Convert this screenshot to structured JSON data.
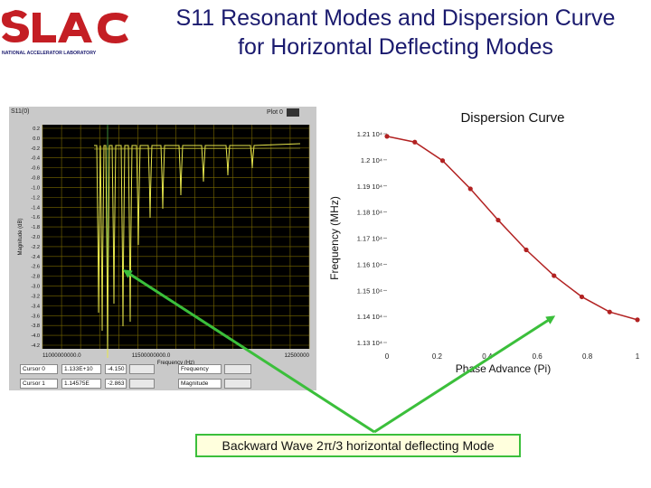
{
  "logo": {
    "name": "SLAC",
    "subtitle": "NATIONAL ACCELERATOR LABORATORY"
  },
  "title": {
    "line1": "S11 Resonant Modes and Dispersion Curve",
    "line2": "for Horizontal Deflecting Modes"
  },
  "s11_panel": {
    "header": "S11(0)",
    "plot_label": "Plot 0",
    "ylabel": "Magnitude (dB)",
    "xlabel": "Frequency (Hz)",
    "x_ticks": [
      "11000000000.0",
      "11500000000.0",
      "12500000"
    ],
    "y_ticks": [
      "0.2",
      "0.0",
      "-0.2",
      "-0.4",
      "-0.6",
      "-0.8",
      "-1.0",
      "-1.2",
      "-1.4",
      "-1.6",
      "-1.8",
      "-2.0",
      "-2.2",
      "-2.4",
      "-2.6",
      "-2.8",
      "-3.0",
      "-3.2",
      "-3.4",
      "-3.6",
      "-3.8",
      "-4.0",
      "-4.2"
    ],
    "cursors": [
      {
        "name": "Cursor 0",
        "freq": "1.133E+10",
        "mag": "-4.150"
      },
      {
        "name": "Cursor 1",
        "freq": "1.14575E",
        "mag": "-2.863"
      }
    ],
    "cursor_fields": [
      "Frequency",
      "Magnitude"
    ],
    "colors": {
      "plot_bg": "#000000",
      "grid": "#7a6a00",
      "trace": "#e6e64d",
      "panel": "#c9c9c9"
    }
  },
  "chart_data": {
    "type": "line",
    "title": "Dispersion Curve",
    "xlabel": "Phase Advance (Pi)",
    "ylabel": "Frequency (MHz)",
    "x_ticks": [
      "0",
      "0.2",
      "0.4",
      "0.6",
      "0.8",
      "1"
    ],
    "y_ticks": [
      "1.21 10⁴",
      "1.2 10⁴",
      "1.19 10⁴",
      "1.18 10⁴",
      "1.17 10⁴",
      "1.16 10⁴",
      "1.15 10⁴",
      "1.14 10⁴",
      "1.13 10⁴"
    ],
    "xlim": [
      0,
      1
    ],
    "ylim": [
      11300,
      12100
    ],
    "series": [
      {
        "color": "#b22222",
        "x": [
          0,
          0.111,
          0.222,
          0.333,
          0.444,
          0.556,
          0.667,
          0.778,
          0.889,
          1.0
        ],
        "y": [
          12090,
          12068,
          11997,
          11889,
          11769,
          11655,
          11556,
          11475,
          11417,
          11387
        ]
      }
    ]
  },
  "callout": {
    "text": "Backward Wave 2π/3 horizontal deflecting Mode",
    "border_color": "#3bbf3b"
  }
}
